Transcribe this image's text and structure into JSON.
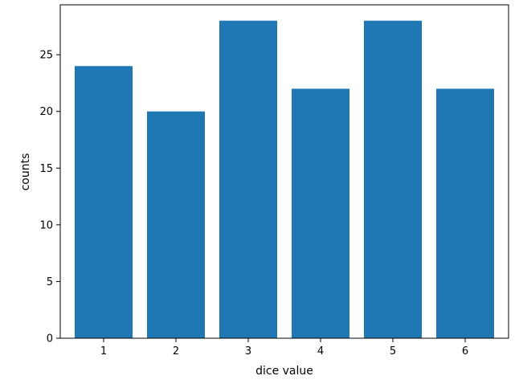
{
  "chart_data": {
    "type": "bar",
    "title": "",
    "xlabel": "dice value",
    "ylabel": "counts",
    "categories": [
      "1",
      "2",
      "3",
      "4",
      "5",
      "6"
    ],
    "x": [
      1,
      2,
      3,
      4,
      5,
      6
    ],
    "values": [
      24,
      20,
      28,
      22,
      28,
      22
    ],
    "xlim": [
      0.4,
      6.6
    ],
    "ylim": [
      0,
      29.4
    ],
    "yticks": [
      0,
      5,
      10,
      15,
      20,
      25
    ],
    "bar_color": "#1f77b4",
    "grid": false,
    "legend": "none"
  }
}
